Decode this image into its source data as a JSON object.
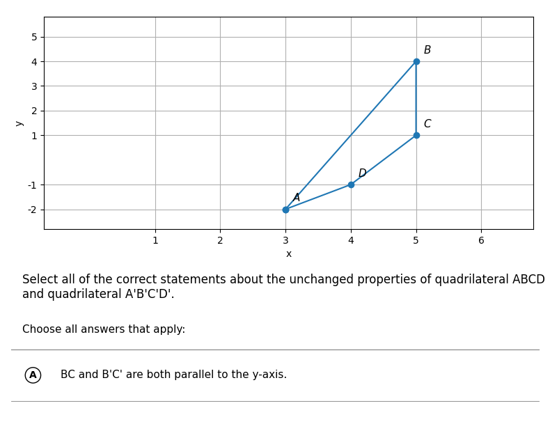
{
  "chart_data": {
    "type": "line",
    "title": "Select all of the correct statements about the unchanged properties of quadrilateral ABCD and quadrilateral A'B'C'D'.",
    "x_label": "x",
    "y_label": "y",
    "series": [
      {
        "name": "ABCD",
        "x": [
          3,
          5,
          5,
          4,
          3
        ],
        "values": [
          -2,
          4,
          1,
          -1,
          -2
        ],
        "marker": "o",
        "line_style": "solid"
      }
    ],
    "xlim": [
      -0.7,
      6.8
    ],
    "ylim": [
      -2.8,
      5.8
    ],
    "xticks": [
      1,
      2,
      3,
      4,
      5,
      6
    ],
    "yticks": [
      -2,
      -1,
      1,
      2,
      3,
      4,
      5
    ],
    "grid": true,
    "annotations": [
      {
        "text": "A",
        "x": 3,
        "y": -2
      },
      {
        "text": "B",
        "x": 5,
        "y": 4
      },
      {
        "text": "C",
        "x": 5,
        "y": 1
      },
      {
        "text": "D",
        "x": 4,
        "y": -1
      },
      {
        "text": "Choose all answers that apply:"
      },
      {
        "text": "A"
      },
      {
        "text": "BC and B'C' are both parallel to the y-axis."
      }
    ]
  }
}
